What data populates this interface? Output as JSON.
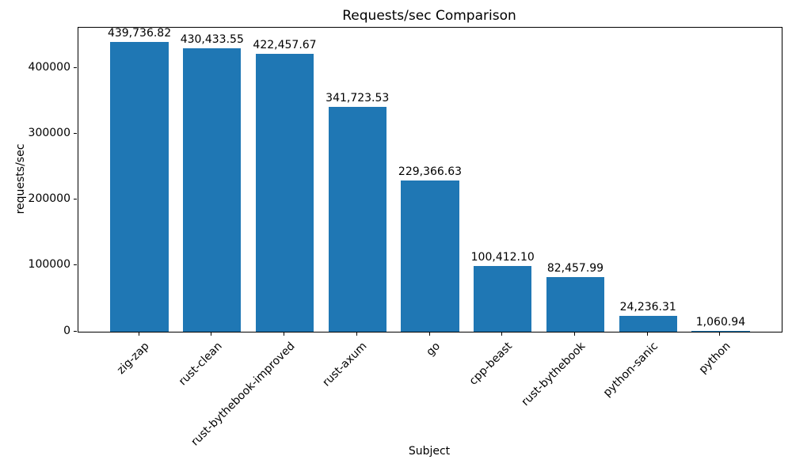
{
  "chart_data": {
    "type": "bar",
    "title": "Requests/sec Comparison",
    "xlabel": "Subject",
    "ylabel": "requests/sec",
    "categories": [
      "zig-zap",
      "rust-clean",
      "rust-bythebook-improved",
      "rust-axum",
      "go",
      "cpp-beast",
      "rust-bythebook",
      "python-sanic",
      "python"
    ],
    "values": [
      439736.82,
      430433.55,
      422457.67,
      341723.53,
      229366.63,
      100412.1,
      82457.99,
      24236.31,
      1060.94
    ],
    "value_labels": [
      "439,736.82",
      "430,433.55",
      "422,457.67",
      "341,723.53",
      "229,366.63",
      "100,412.10",
      "82,457.99",
      "24,236.31",
      "1,060.94"
    ],
    "bar_color": "#1f77b4",
    "text_color": "#000000",
    "ylim": [
      0,
      461724
    ],
    "yticks": [
      0,
      100000,
      200000,
      300000,
      400000
    ],
    "ytick_labels": [
      "0",
      "100000",
      "200000",
      "300000",
      "400000"
    ],
    "grid": false,
    "legend_position": "none",
    "xtick_rotation_deg": 45
  }
}
